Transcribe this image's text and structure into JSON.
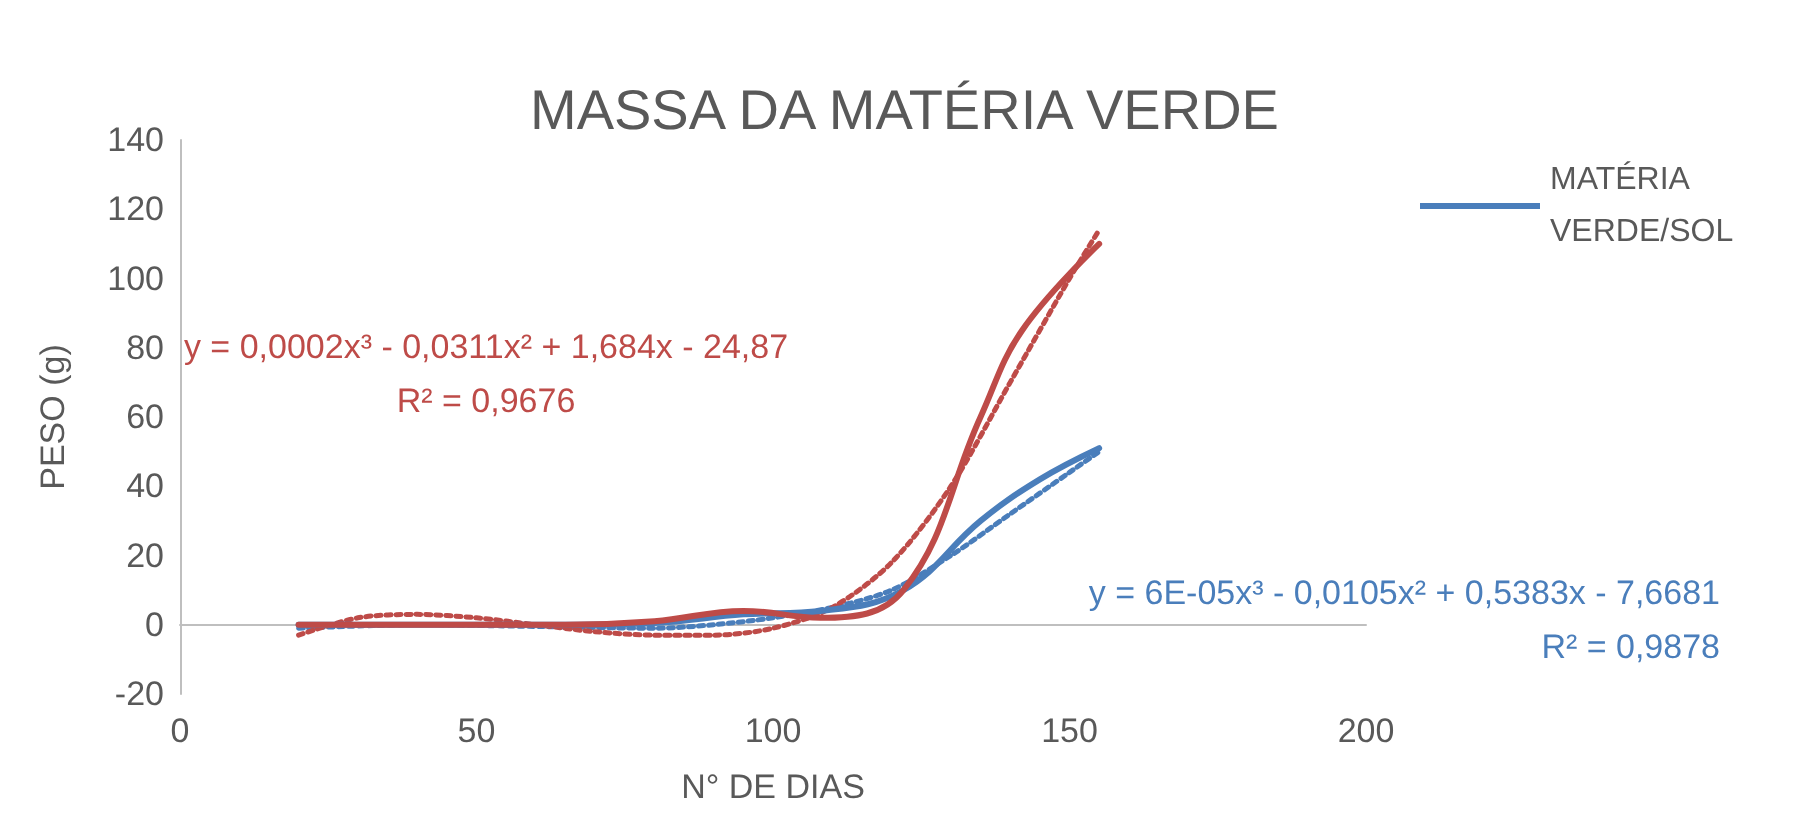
{
  "chart_data": {
    "type": "line",
    "title": "MASSA DA MATÉRIA VERDE",
    "xlabel": "N° DE DIAS",
    "ylabel": "PESO (g)",
    "xlim": [
      0,
      200
    ],
    "xticks": [
      0,
      50,
      100,
      150,
      200
    ],
    "ylim": [
      -20,
      140
    ],
    "yticks": [
      -20,
      0,
      20,
      40,
      60,
      80,
      100,
      120,
      140
    ],
    "grid": false,
    "legend": "top right",
    "marker": "none",
    "series": [
      {
        "name": "MATÉRIA VERDE/SOL",
        "color": "#4a7ebb",
        "x": [
          20,
          35,
          50,
          65,
          80,
          95,
          108,
          122,
          135,
          145,
          155
        ],
        "values": [
          0,
          0,
          0,
          0,
          0.5,
          3,
          4,
          10,
          30,
          42,
          51
        ]
      },
      {
        "color": "#be4b48",
        "x": [
          20,
          35,
          50,
          65,
          80,
          95,
          108,
          122,
          135,
          142,
          155
        ],
        "values": [
          0,
          0,
          0,
          0,
          1,
          4,
          2,
          10,
          60,
          85,
          110
        ]
      },
      {
        "type": "line",
        "line_style": "dotted",
        "color": "#4a7ebb",
        "x": [
          20,
          40,
          60,
          80,
          90,
          100,
          110,
          120,
          130,
          140,
          150,
          155
        ],
        "values": [
          -1,
          0,
          -0.5,
          -1,
          0,
          2,
          5,
          10,
          20,
          32,
          44,
          50
        ]
      },
      {
        "type": "line",
        "line_style": "dotted",
        "color": "#be4b48",
        "x": [
          20,
          30,
          40,
          50,
          60,
          70,
          80,
          90,
          100,
          110,
          120,
          130,
          140,
          150,
          155
        ],
        "values": [
          -3,
          2,
          3,
          2,
          0,
          -2,
          -3,
          -3,
          -1,
          5,
          18,
          40,
          70,
          100,
          114
        ]
      }
    ],
    "annotations": [
      "y = 6E-05x³ - 0,0105x² + 0,5383x - 7,6681\nR² = 0,9878",
      "y = 0,0002x³ - 0,0311x² + 1,684x - 24,87\nR² = 0,9676"
    ]
  }
}
